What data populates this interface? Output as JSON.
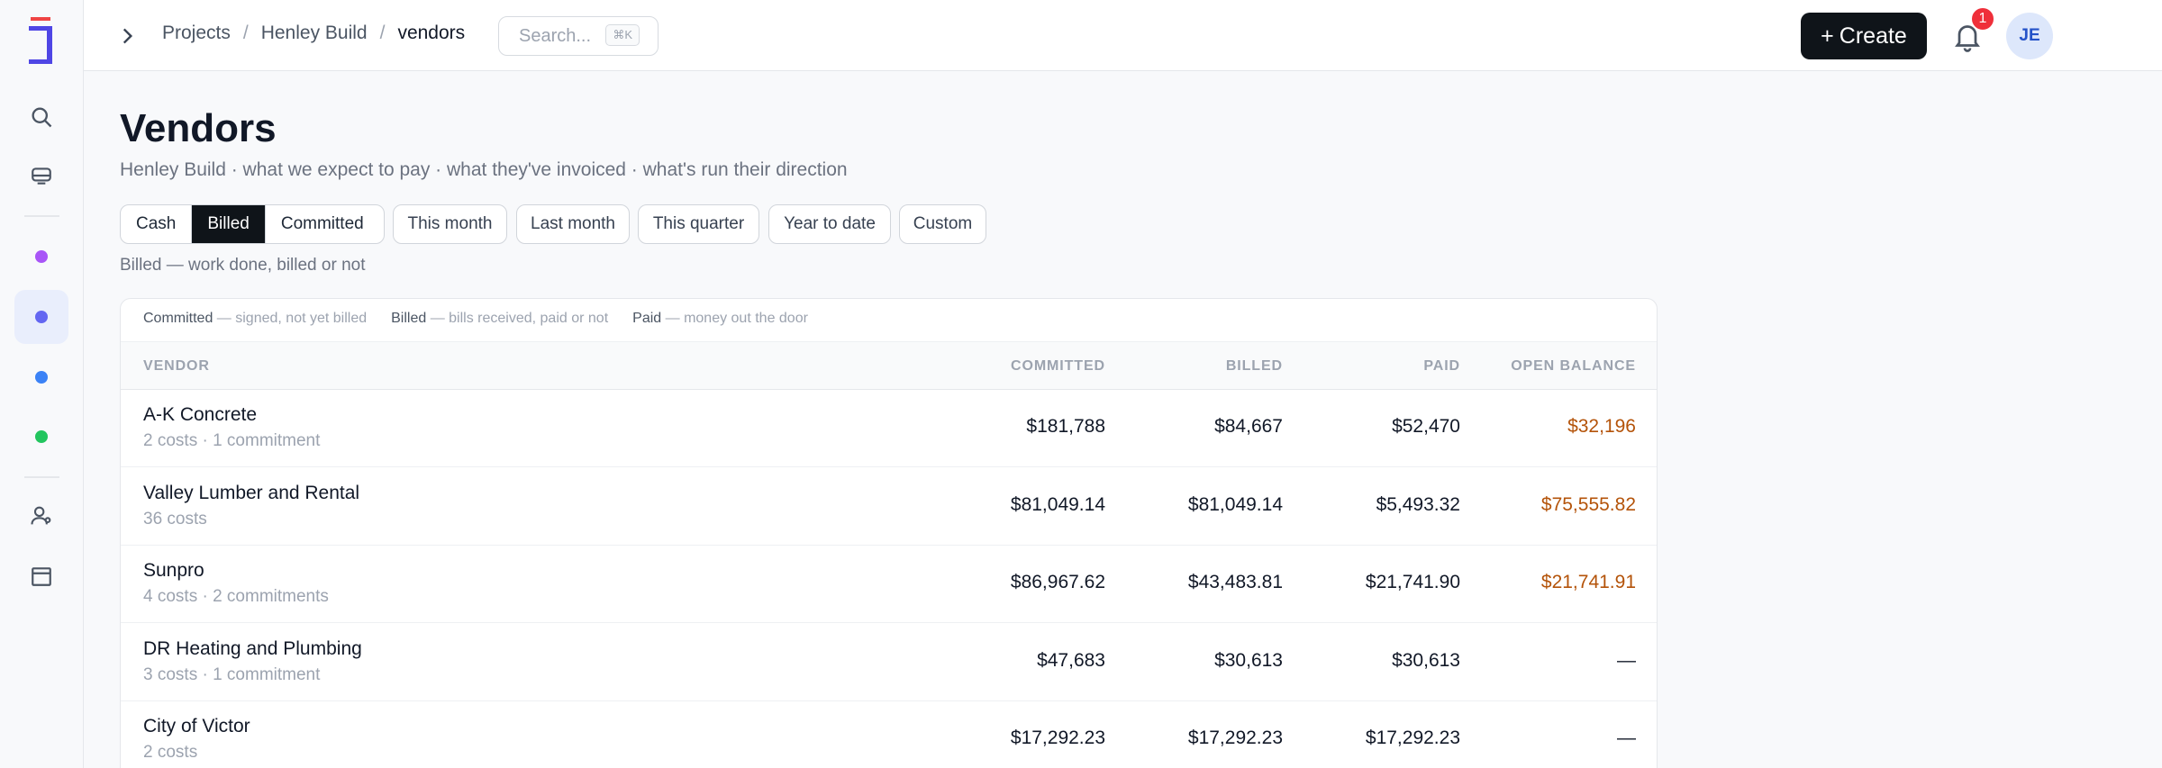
{
  "breadcrumb": {
    "items": [
      "Projects",
      "Henley Build"
    ],
    "current": "vendors",
    "separator": "/"
  },
  "search": {
    "placeholder": "Search...",
    "shortcut": "⌘K"
  },
  "header": {
    "create_label": "Create",
    "notifications_count": "1",
    "avatar_initials": "JE"
  },
  "sidebar": {
    "icons": [
      "search-icon",
      "inbox-icon",
      "users-icon",
      "calendar-icon"
    ],
    "dot_colors": [
      "#a855f7",
      "#6366f1",
      "#3b82f6",
      "#22c55e"
    ],
    "logo_colors": {
      "primary": "#4f46e5",
      "accent": "#ef4444"
    }
  },
  "page": {
    "title": "Vendors",
    "subtitle": "Henley Build · what we expect to pay · what they've invoiced · what's run their direction"
  },
  "filters": {
    "basis": [
      "Cash",
      "Billed",
      "Committed"
    ],
    "basis_selected": "Billed",
    "periods": [
      "This month",
      "Last month",
      "This quarter",
      "Year to date",
      "Custom"
    ],
    "hint": "Billed — work done, billed or not"
  },
  "legend": [
    {
      "term": "Committed",
      "desc": " — signed, not yet billed"
    },
    {
      "term": "Billed",
      "desc": " — bills received, paid or not"
    },
    {
      "term": "Paid",
      "desc": " — money out the door"
    }
  ],
  "table": {
    "columns": [
      "VENDOR",
      "COMMITTED",
      "BILLED",
      "PAID",
      "OPEN BALANCE"
    ],
    "rows": [
      {
        "vendor": "A-K Concrete",
        "meta": "2 costs · 1 commitment",
        "committed": "$181,788",
        "billed": "$84,667",
        "paid": "$52,470",
        "open": "$32,196"
      },
      {
        "vendor": "Valley Lumber and Rental",
        "meta": "36 costs",
        "committed": "$81,049.14",
        "billed": "$81,049.14",
        "paid": "$5,493.32",
        "open": "$75,555.82"
      },
      {
        "vendor": "Sunpro",
        "meta": "4 costs · 2 commitments",
        "committed": "$86,967.62",
        "billed": "$43,483.81",
        "paid": "$21,741.90",
        "open": "$21,741.91"
      },
      {
        "vendor": "DR Heating and Plumbing",
        "meta": "3 costs · 1 commitment",
        "committed": "$47,683",
        "billed": "$30,613",
        "paid": "$30,613",
        "open": "—"
      },
      {
        "vendor": "City of Victor",
        "meta": "2 costs",
        "committed": "$17,292.23",
        "billed": "$17,292.23",
        "paid": "$17,292.23",
        "open": "—"
      }
    ]
  },
  "colors": {
    "open_balance": "#b45309",
    "selected_bg": "#0f1419",
    "notification": "#ef2f3a"
  }
}
